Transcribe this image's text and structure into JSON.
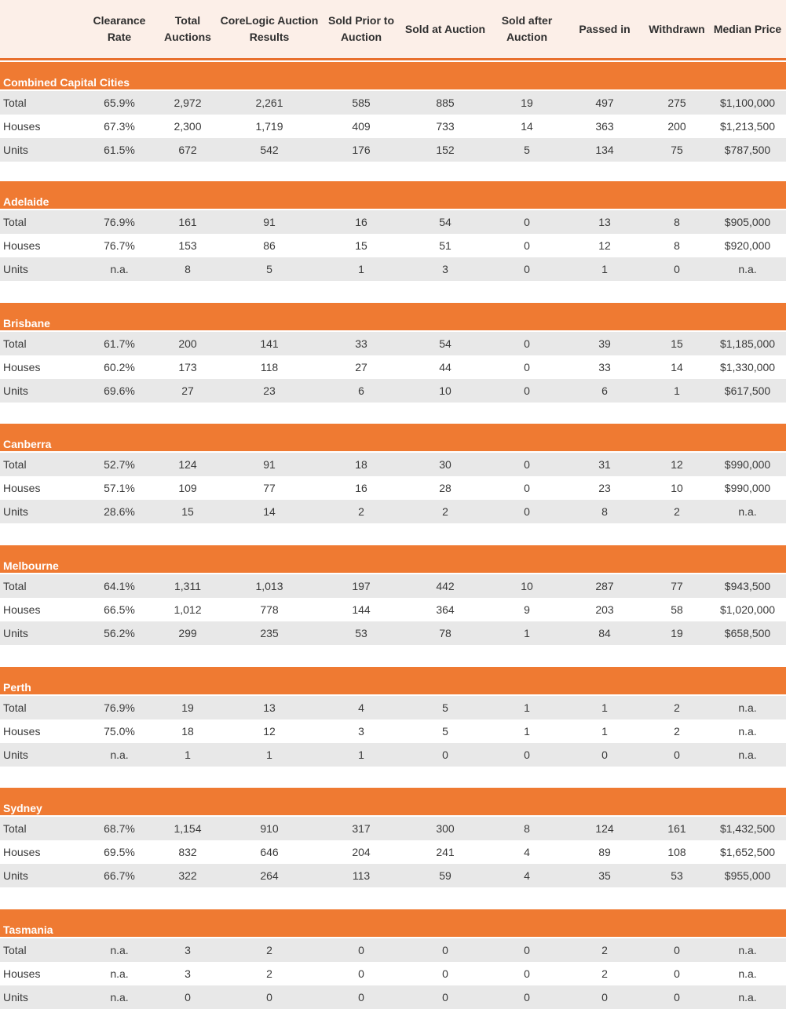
{
  "columns": [
    "Clearance\nRate",
    "Total\nAuctions",
    "CoreLogic Auction\nResults",
    "Sold Prior to\nAuction",
    "Sold at Auction",
    "Sold after\nAuction",
    "Passed in",
    "Withdrawn",
    "Median Price"
  ],
  "sections": [
    {
      "title": "Combined Capital Cities",
      "rows": [
        {
          "label": "Total",
          "values": [
            "65.9%",
            "2,972",
            "2,261",
            "585",
            "885",
            "19",
            "497",
            "275",
            "$1,100,000"
          ]
        },
        {
          "label": "Houses",
          "values": [
            "67.3%",
            "2,300",
            "1,719",
            "409",
            "733",
            "14",
            "363",
            "200",
            "$1,213,500"
          ]
        },
        {
          "label": "Units",
          "values": [
            "61.5%",
            "672",
            "542",
            "176",
            "152",
            "5",
            "134",
            "75",
            "$787,500"
          ]
        }
      ]
    },
    {
      "title": "Adelaide",
      "rows": [
        {
          "label": "Total",
          "values": [
            "76.9%",
            "161",
            "91",
            "16",
            "54",
            "0",
            "13",
            "8",
            "$905,000"
          ]
        },
        {
          "label": "Houses",
          "values": [
            "76.7%",
            "153",
            "86",
            "15",
            "51",
            "0",
            "12",
            "8",
            "$920,000"
          ]
        },
        {
          "label": "Units",
          "values": [
            "n.a.",
            "8",
            "5",
            "1",
            "3",
            "0",
            "1",
            "0",
            "n.a."
          ]
        }
      ]
    },
    {
      "title": "Brisbane",
      "rows": [
        {
          "label": "Total",
          "values": [
            "61.7%",
            "200",
            "141",
            "33",
            "54",
            "0",
            "39",
            "15",
            "$1,185,000"
          ]
        },
        {
          "label": "Houses",
          "values": [
            "60.2%",
            "173",
            "118",
            "27",
            "44",
            "0",
            "33",
            "14",
            "$1,330,000"
          ]
        },
        {
          "label": "Units",
          "values": [
            "69.6%",
            "27",
            "23",
            "6",
            "10",
            "0",
            "6",
            "1",
            "$617,500"
          ]
        }
      ]
    },
    {
      "title": "Canberra",
      "rows": [
        {
          "label": "Total",
          "values": [
            "52.7%",
            "124",
            "91",
            "18",
            "30",
            "0",
            "31",
            "12",
            "$990,000"
          ]
        },
        {
          "label": "Houses",
          "values": [
            "57.1%",
            "109",
            "77",
            "16",
            "28",
            "0",
            "23",
            "10",
            "$990,000"
          ]
        },
        {
          "label": "Units",
          "values": [
            "28.6%",
            "15",
            "14",
            "2",
            "2",
            "0",
            "8",
            "2",
            "n.a."
          ]
        }
      ]
    },
    {
      "title": "Melbourne",
      "rows": [
        {
          "label": "Total",
          "values": [
            "64.1%",
            "1,311",
            "1,013",
            "197",
            "442",
            "10",
            "287",
            "77",
            "$943,500"
          ]
        },
        {
          "label": "Houses",
          "values": [
            "66.5%",
            "1,012",
            "778",
            "144",
            "364",
            "9",
            "203",
            "58",
            "$1,020,000"
          ]
        },
        {
          "label": "Units",
          "values": [
            "56.2%",
            "299",
            "235",
            "53",
            "78",
            "1",
            "84",
            "19",
            "$658,500"
          ]
        }
      ]
    },
    {
      "title": "Perth",
      "rows": [
        {
          "label": "Total",
          "values": [
            "76.9%",
            "19",
            "13",
            "4",
            "5",
            "1",
            "1",
            "2",
            "n.a."
          ]
        },
        {
          "label": "Houses",
          "values": [
            "75.0%",
            "18",
            "12",
            "3",
            "5",
            "1",
            "1",
            "2",
            "n.a."
          ]
        },
        {
          "label": "Units",
          "values": [
            "n.a.",
            "1",
            "1",
            "1",
            "0",
            "0",
            "0",
            "0",
            "n.a."
          ]
        }
      ]
    },
    {
      "title": "Sydney",
      "rows": [
        {
          "label": "Total",
          "values": [
            "68.7%",
            "1,154",
            "910",
            "317",
            "300",
            "8",
            "124",
            "161",
            "$1,432,500"
          ]
        },
        {
          "label": "Houses",
          "values": [
            "69.5%",
            "832",
            "646",
            "204",
            "241",
            "4",
            "89",
            "108",
            "$1,652,500"
          ]
        },
        {
          "label": "Units",
          "values": [
            "66.7%",
            "322",
            "264",
            "113",
            "59",
            "4",
            "35",
            "53",
            "$955,000"
          ]
        }
      ]
    },
    {
      "title": "Tasmania",
      "rows": [
        {
          "label": "Total",
          "values": [
            "n.a.",
            "3",
            "2",
            "0",
            "0",
            "0",
            "2",
            "0",
            "n.a."
          ]
        },
        {
          "label": "Houses",
          "values": [
            "n.a.",
            "3",
            "2",
            "0",
            "0",
            "0",
            "2",
            "0",
            "n.a."
          ]
        },
        {
          "label": "Units",
          "values": [
            "n.a.",
            "0",
            "0",
            "0",
            "0",
            "0",
            "0",
            "0",
            "n.a."
          ]
        }
      ]
    }
  ],
  "colors": {
    "accent": "#ef7a32",
    "header_bg": "#fcefe8",
    "row_shade": "#e8e8e8"
  }
}
